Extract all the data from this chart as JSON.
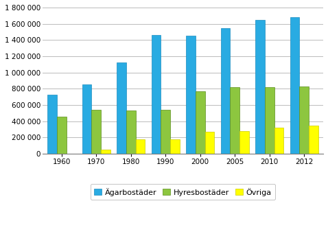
{
  "years": [
    "1960",
    "1970",
    "1980",
    "1990",
    "2000",
    "2005",
    "2010",
    "2012"
  ],
  "agarbostader": [
    730000,
    850000,
    1120000,
    1465000,
    1450000,
    1545000,
    1650000,
    1680000
  ],
  "hyresbostader": [
    460000,
    540000,
    535000,
    545000,
    770000,
    820000,
    820000,
    830000
  ],
  "ovriga": [
    4000,
    55000,
    180000,
    178000,
    270000,
    278000,
    325000,
    348000
  ],
  "bar_colors": [
    "#29ABE2",
    "#8DC63F",
    "#FFFF00"
  ],
  "bar_edge_colors": [
    "#1A8CBF",
    "#5A8C1A",
    "#CCCC00"
  ],
  "ylim": [
    0,
    1800000
  ],
  "yticks": [
    0,
    200000,
    400000,
    600000,
    800000,
    1000000,
    1200000,
    1400000,
    1600000,
    1800000
  ],
  "ytick_labels": [
    "0",
    "200 000",
    "400 000",
    "600 000",
    "800 000",
    "1 000 000",
    "1 200 000",
    "1 400 000",
    "1 600 000",
    "1 800 000"
  ],
  "legend_labels": [
    "Ägarbostäder",
    "Hyresbostäder",
    "Övriga"
  ],
  "background_color": "#ffffff",
  "grid_color": "#bbbbbb",
  "plot_bg_color": "#ffffff"
}
